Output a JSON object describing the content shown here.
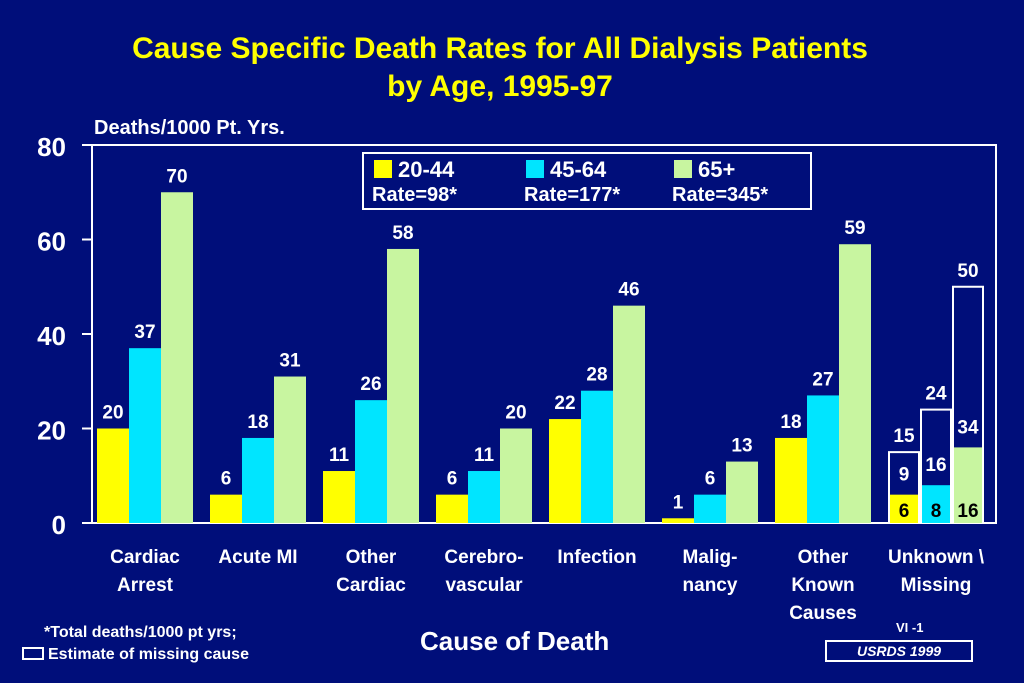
{
  "title_line1": "Cause Specific Death Rates for All Dialysis Patients",
  "title_line2": "by Age, 1995-97",
  "footnote_total": "*Total deaths/1000 pt yrs;",
  "footnote_missing": "Estimate of missing cause",
  "xaxis_title": "Cause of Death",
  "slide_id": "VI -1",
  "source": "USRDS  1999",
  "colors": {
    "background": "#000e7a",
    "title": "#ffff00",
    "series_20_44": "#ffff00",
    "series_45_64": "#00e5ff",
    "series_65": "#c8f5a0"
  },
  "chart_data": {
    "type": "bar",
    "ylabel": "Deaths/1000 Pt. Yrs.",
    "xlabel": "Cause of Death",
    "ylim": [
      0,
      80
    ],
    "yticks": [
      0,
      20,
      40,
      60,
      80
    ],
    "legend_placement": "top-center",
    "categories": [
      [
        "Cardiac",
        "Arrest"
      ],
      [
        "Acute MI"
      ],
      [
        "Other",
        "Cardiac"
      ],
      [
        "Cerebro-",
        "vascular"
      ],
      [
        "Infection"
      ],
      [
        "Malig-",
        "nancy"
      ],
      [
        "Other",
        "Known",
        "Causes"
      ],
      [
        "Unknown \\",
        "Missing"
      ]
    ],
    "series": [
      {
        "name": "20-44",
        "rate": "Rate=98*",
        "values": [
          20,
          6,
          11,
          6,
          22,
          1,
          18,
          6
        ],
        "missing_estimate_total": 15,
        "missing_estimate_label": "9"
      },
      {
        "name": "45-64",
        "rate": "Rate=177*",
        "values": [
          37,
          18,
          26,
          11,
          28,
          6,
          27,
          8
        ],
        "missing_estimate_total": 24,
        "missing_estimate_label": "16"
      },
      {
        "name": "65+",
        "rate": "Rate=345*",
        "values": [
          70,
          31,
          58,
          20,
          46,
          13,
          59,
          16
        ],
        "missing_estimate_total": 50,
        "missing_estimate_label": "34"
      }
    ]
  }
}
